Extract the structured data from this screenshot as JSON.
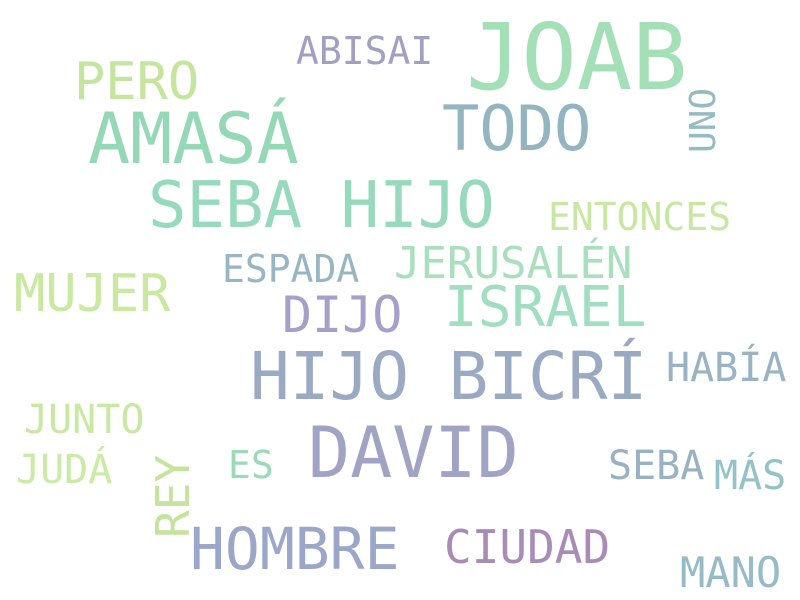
{
  "word_cloud": {
    "background_color": "#ffffff",
    "words": [
      {
        "key": "joab",
        "text": "JOAB",
        "color": "#a3dfb7",
        "orientation": "horizontal"
      },
      {
        "key": "abisai",
        "text": "ABISAI",
        "color": "#a39fc3",
        "orientation": "horizontal"
      },
      {
        "key": "pero",
        "text": "PERO",
        "color": "#c4e59e",
        "orientation": "horizontal"
      },
      {
        "key": "uno",
        "text": "UNO",
        "color": "#93bcc2",
        "orientation": "vertical"
      },
      {
        "key": "amasa",
        "text": "AMASÁ",
        "color": "#94d8b6",
        "orientation": "horizontal"
      },
      {
        "key": "todo",
        "text": "TODO",
        "color": "#93b4c1",
        "orientation": "horizontal"
      },
      {
        "key": "seba_hijo",
        "text": "SEBA HIJO",
        "color": "#96d9bd",
        "orientation": "horizontal"
      },
      {
        "key": "entonces",
        "text": "ENTONCES",
        "color": "#c7e7a2",
        "orientation": "horizontal"
      },
      {
        "key": "espada",
        "text": "ESPADA",
        "color": "#97b6c2",
        "orientation": "horizontal"
      },
      {
        "key": "jerusalen",
        "text": "JERUSALÉN",
        "color": "#a8dfbc",
        "orientation": "horizontal"
      },
      {
        "key": "mujer",
        "text": "MUJER",
        "color": "#c9e8a0",
        "orientation": "horizontal"
      },
      {
        "key": "israel",
        "text": "ISRAEL",
        "color": "#9fdec0",
        "orientation": "horizontal"
      },
      {
        "key": "dijo",
        "text": "DIJO",
        "color": "#a6a0c8",
        "orientation": "horizontal"
      },
      {
        "key": "hijo_bicri",
        "text": "HIJO BICRÍ",
        "color": "#9aaac3",
        "orientation": "horizontal"
      },
      {
        "key": "habia",
        "text": "HABÍA",
        "color": "#9ab3c4",
        "orientation": "horizontal"
      },
      {
        "key": "junto",
        "text": "JUNTO",
        "color": "#c8e8a4",
        "orientation": "horizontal"
      },
      {
        "key": "david",
        "text": "DAVID",
        "color": "#a0a3c4",
        "orientation": "horizontal"
      },
      {
        "key": "es",
        "text": "ES",
        "color": "#9dd8bb",
        "orientation": "horizontal"
      },
      {
        "key": "juda",
        "text": "JUDÁ",
        "color": "#caeba6",
        "orientation": "horizontal"
      },
      {
        "key": "seba",
        "text": "SEBA",
        "color": "#98b1c3",
        "orientation": "horizontal"
      },
      {
        "key": "mas",
        "text": "MÁS",
        "color": "#93c3c9",
        "orientation": "horizontal"
      },
      {
        "key": "rey",
        "text": "REY",
        "color": "#c4e39d",
        "orientation": "vertical"
      },
      {
        "key": "hombre",
        "text": "HOMBRE",
        "color": "#9ba7c8",
        "orientation": "horizontal"
      },
      {
        "key": "ciudad",
        "text": "CIUDAD",
        "color": "#a88cb5",
        "orientation": "horizontal"
      },
      {
        "key": "mano",
        "text": "MANO",
        "color": "#96bbc6",
        "orientation": "horizontal"
      }
    ]
  }
}
